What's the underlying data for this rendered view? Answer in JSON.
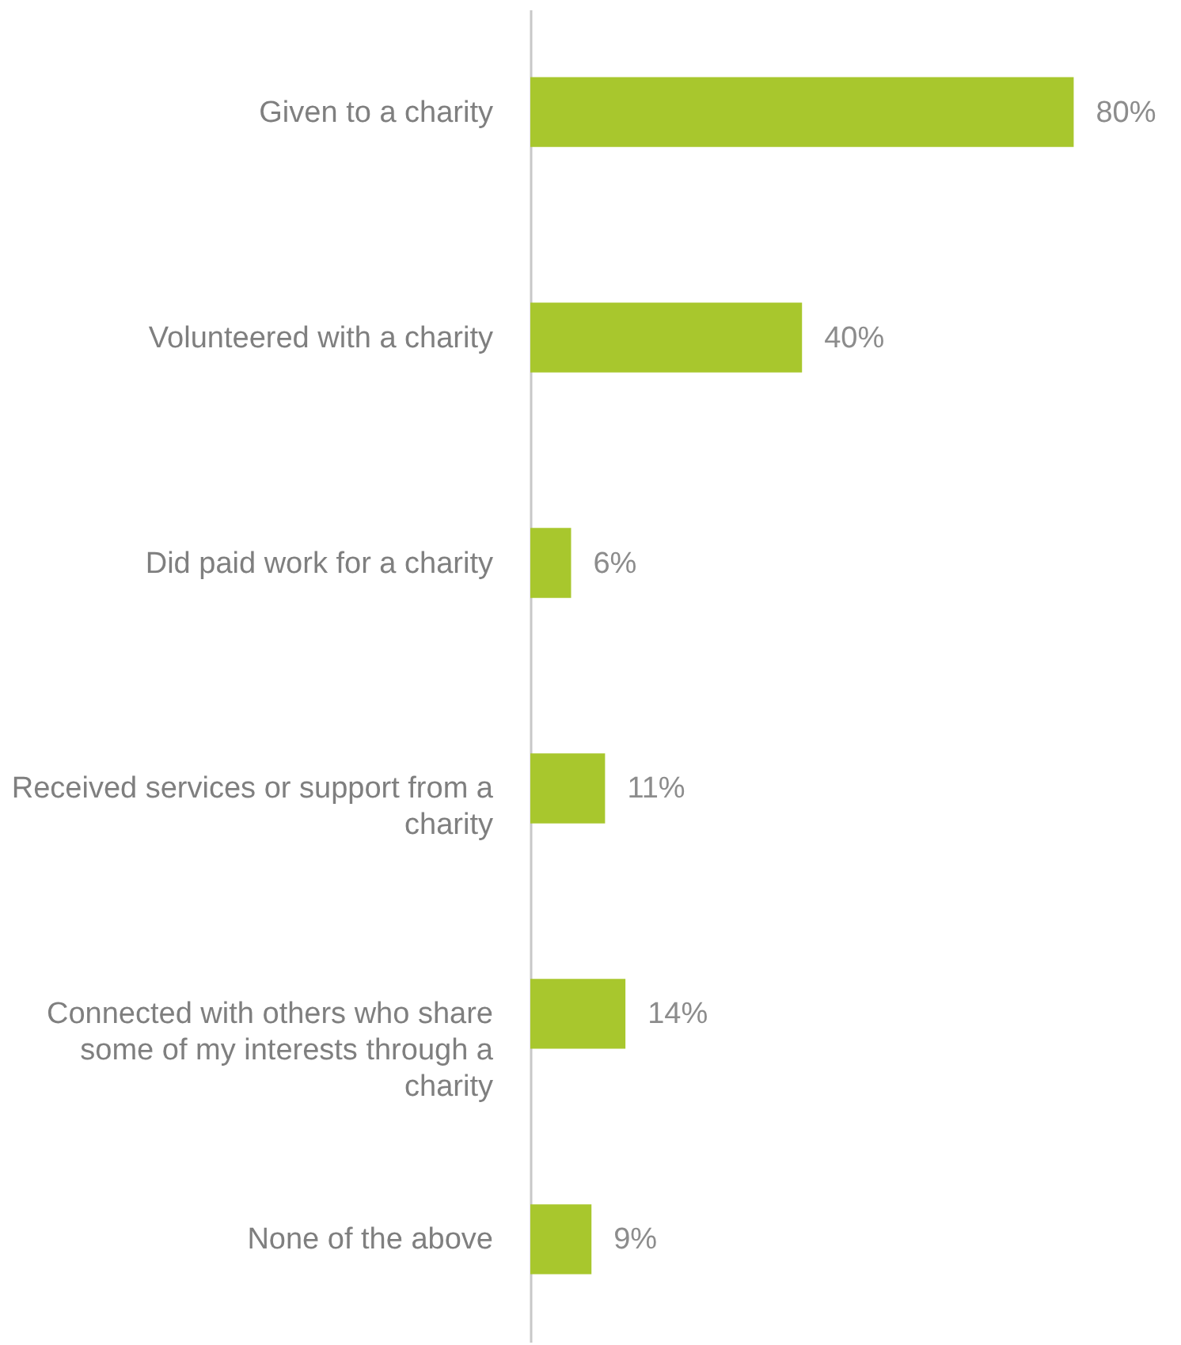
{
  "chart_data": {
    "type": "bar",
    "orientation": "horizontal",
    "categories": [
      "Given to a charity",
      "Volunteered with a charity",
      "Did paid work for a charity",
      "Received services or support from a charity",
      "Connected with others who share some of my interests through a charity",
      "None of the above"
    ],
    "values": [
      80,
      40,
      6,
      11,
      14,
      9
    ],
    "value_labels": [
      "80%",
      "40%",
      "6%",
      "11%",
      "14%",
      "9%"
    ],
    "color": "#a8c72d"
  }
}
